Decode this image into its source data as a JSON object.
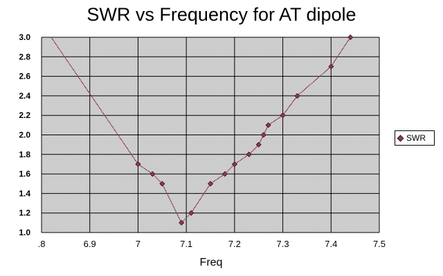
{
  "chart_data": {
    "type": "line",
    "title": "SWR vs Frequency for AT dipole",
    "xlabel": "Freq",
    "ylabel": "",
    "xlim": [
      6.8,
      7.5
    ],
    "ylim": [
      1.0,
      3.0
    ],
    "x_ticks": [
      ".8",
      "6.9",
      "7",
      "7.1",
      "7.2",
      "7.3",
      "7.4",
      "7.5"
    ],
    "y_ticks": [
      "1.0",
      "1.2",
      "1.4",
      "1.6",
      "1.8",
      "2.0",
      "2.2",
      "2.4",
      "2.6",
      "2.8",
      "3.0"
    ],
    "grid": true,
    "legend_position": "right",
    "series": [
      {
        "name": "SWR",
        "color": "#8a3a5a",
        "marker": "diamond",
        "x": [
          7.0,
          7.03,
          7.05,
          7.09,
          7.11,
          7.15,
          7.18,
          7.2,
          7.23,
          7.25,
          7.26,
          7.27,
          7.3,
          7.33,
          7.4,
          7.44
        ],
        "y": [
          1.7,
          1.6,
          1.5,
          1.1,
          1.2,
          1.5,
          1.6,
          1.7,
          1.8,
          1.9,
          2.0,
          2.1,
          2.2,
          2.4,
          2.7,
          3.0
        ]
      }
    ],
    "leading_segment": {
      "x": [
        6.82,
        7.0
      ],
      "y": [
        3.0,
        1.7
      ]
    }
  }
}
